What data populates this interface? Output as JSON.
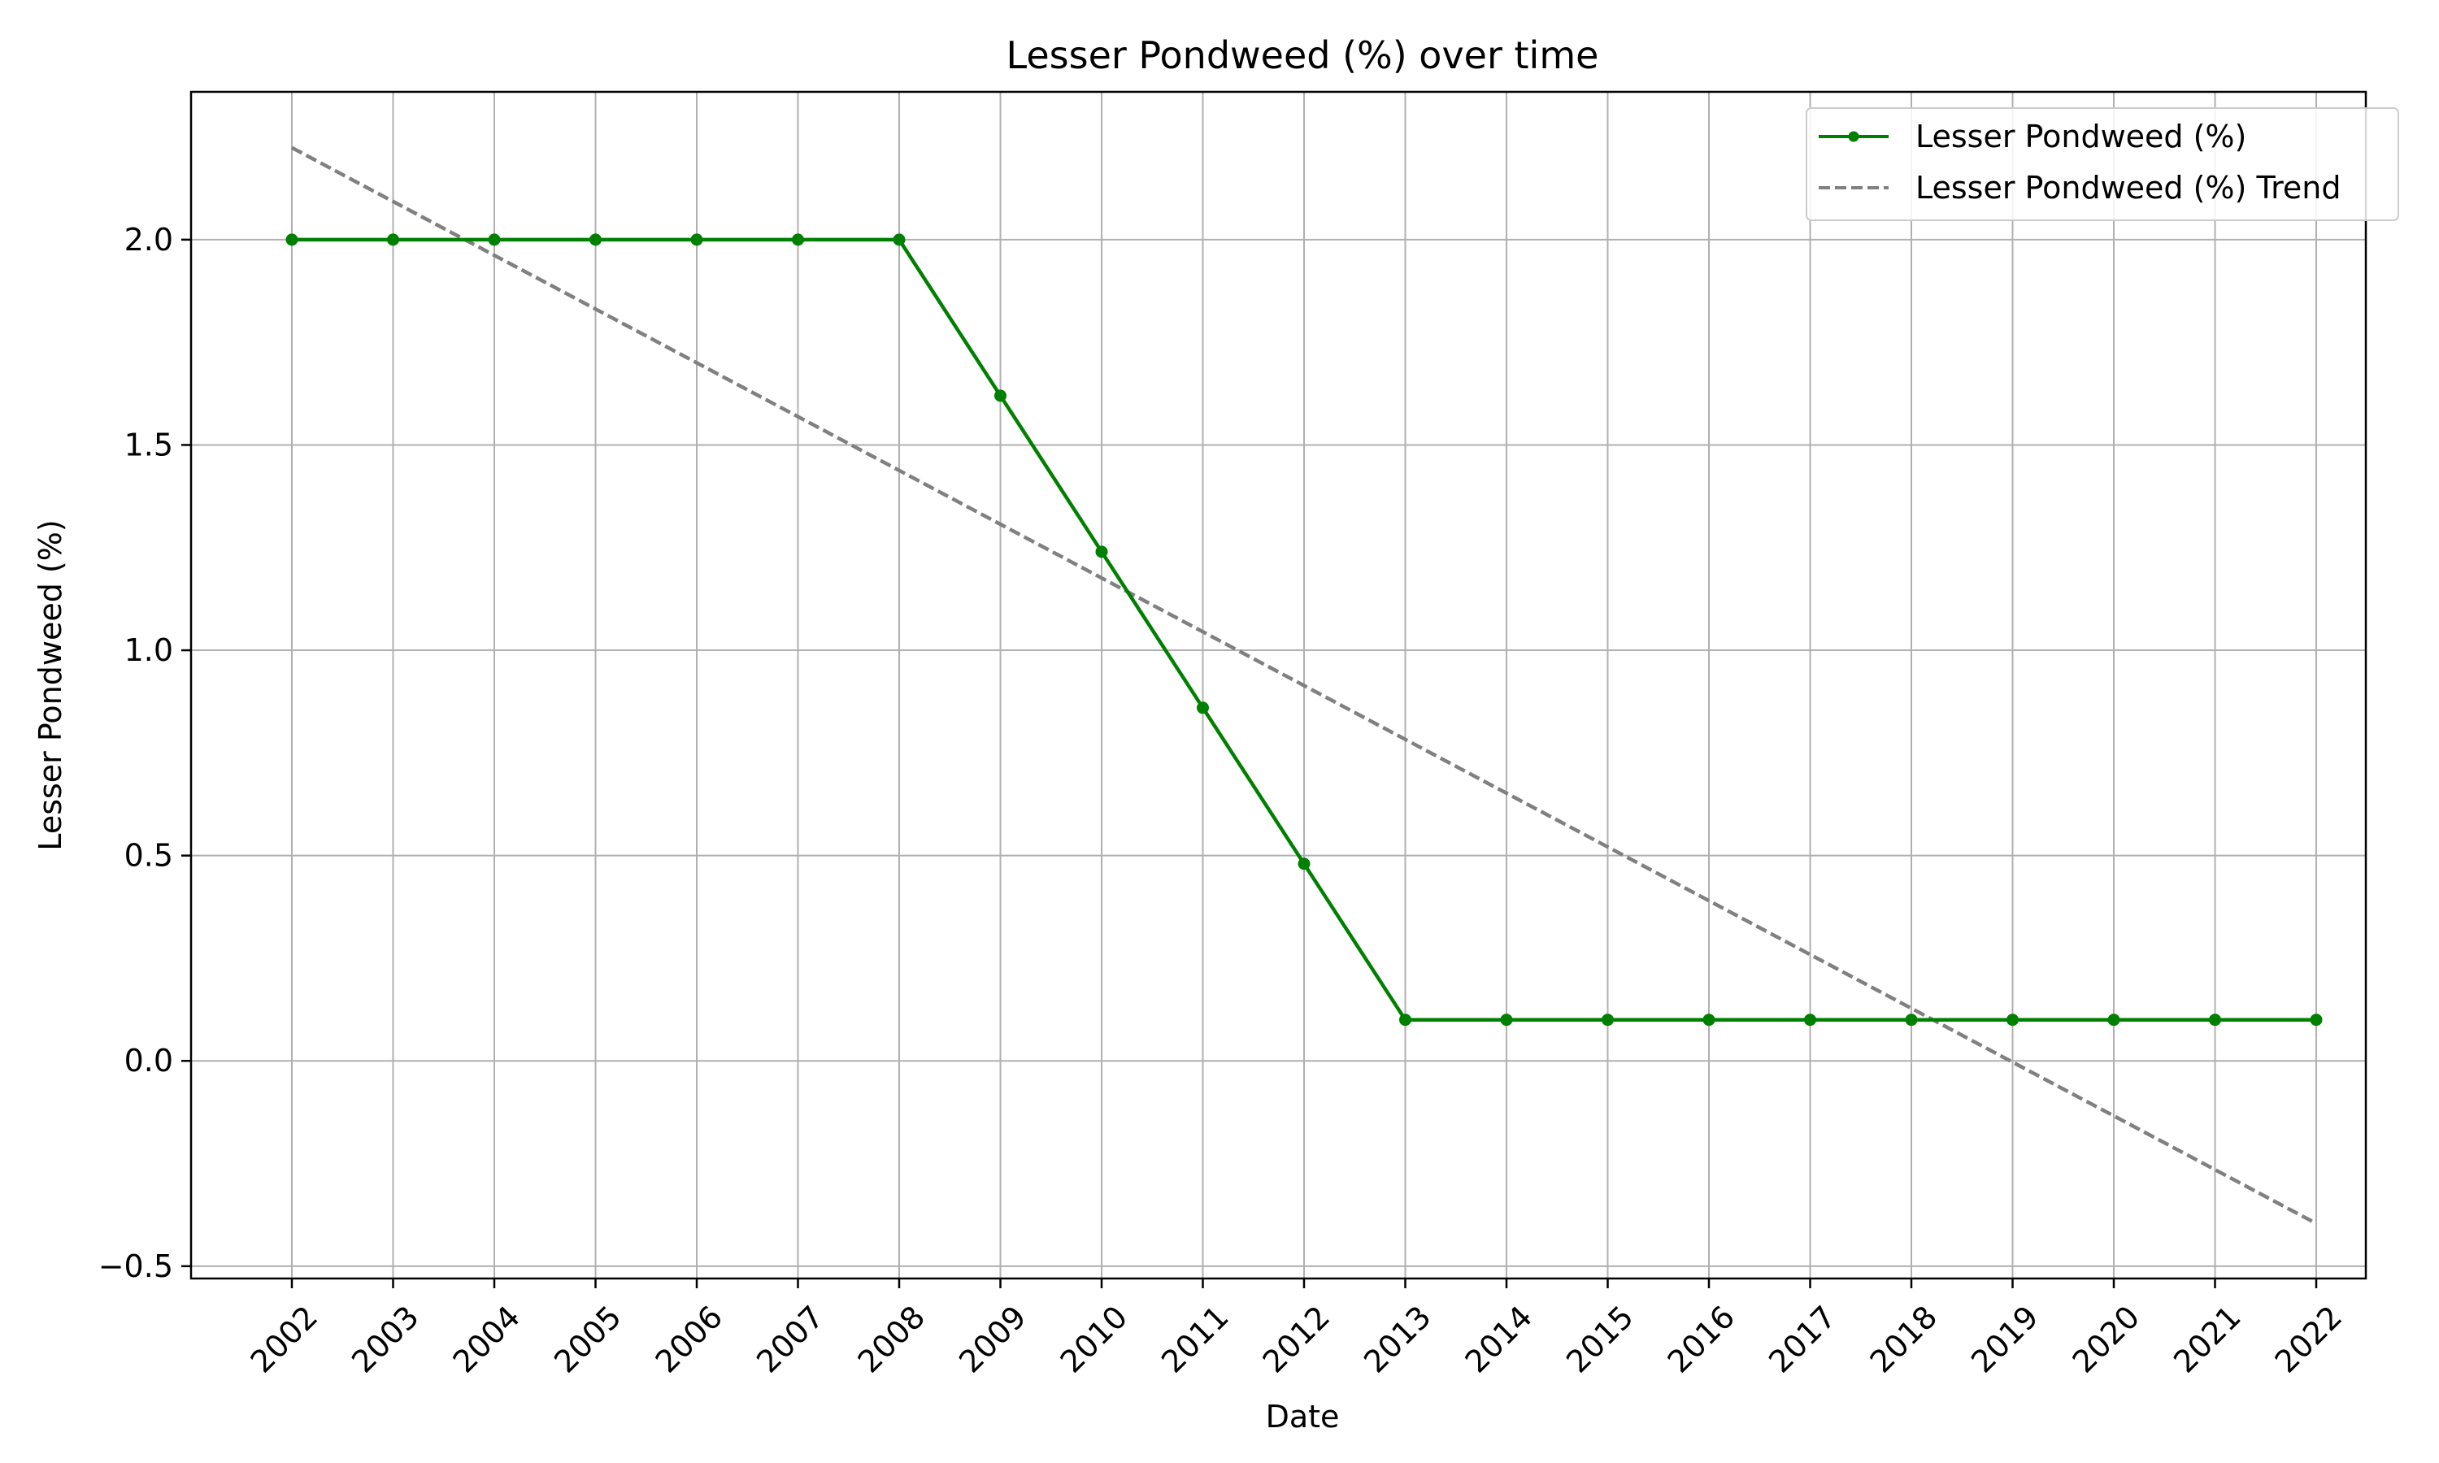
{
  "chart_data": {
    "type": "line",
    "title": "Lesser Pondweed (%) over time",
    "xlabel": "Date",
    "ylabel": "Lesser Pondweed (%)",
    "x": [
      "2002",
      "2003",
      "2004",
      "2005",
      "2006",
      "2007",
      "2008",
      "2009",
      "2010",
      "2011",
      "2012",
      "2013",
      "2014",
      "2015",
      "2016",
      "2017",
      "2018",
      "2019",
      "2020",
      "2021",
      "2022"
    ],
    "ylim": [
      -0.53,
      2.36
    ],
    "yticks": [
      -0.5,
      0.0,
      0.5,
      1.0,
      1.5,
      2.0
    ],
    "ytick_labels": [
      "−0.5",
      "0.0",
      "0.5",
      "1.0",
      "1.5",
      "2.0"
    ],
    "grid": true,
    "legend_position": "top-right",
    "series": [
      {
        "name": "Lesser Pondweed (%)",
        "color": "#008000",
        "style": "solid",
        "marker": "circle",
        "values": [
          2.0,
          2.0,
          2.0,
          2.0,
          2.0,
          2.0,
          2.0,
          1.62,
          1.24,
          0.86,
          0.48,
          0.1,
          0.1,
          0.1,
          0.1,
          0.1,
          0.1,
          0.1,
          0.1,
          0.1,
          0.1
        ]
      },
      {
        "name": "Lesser Pondweed (%) Trend",
        "color": "#808080",
        "style": "dashed",
        "marker": "none",
        "values": [
          2.224,
          2.093,
          1.962,
          1.831,
          1.7,
          1.569,
          1.438,
          1.307,
          1.176,
          1.045,
          0.914,
          0.783,
          0.652,
          0.521,
          0.39,
          0.259,
          0.128,
          -0.003,
          -0.134,
          -0.265,
          -0.396
        ]
      }
    ]
  }
}
